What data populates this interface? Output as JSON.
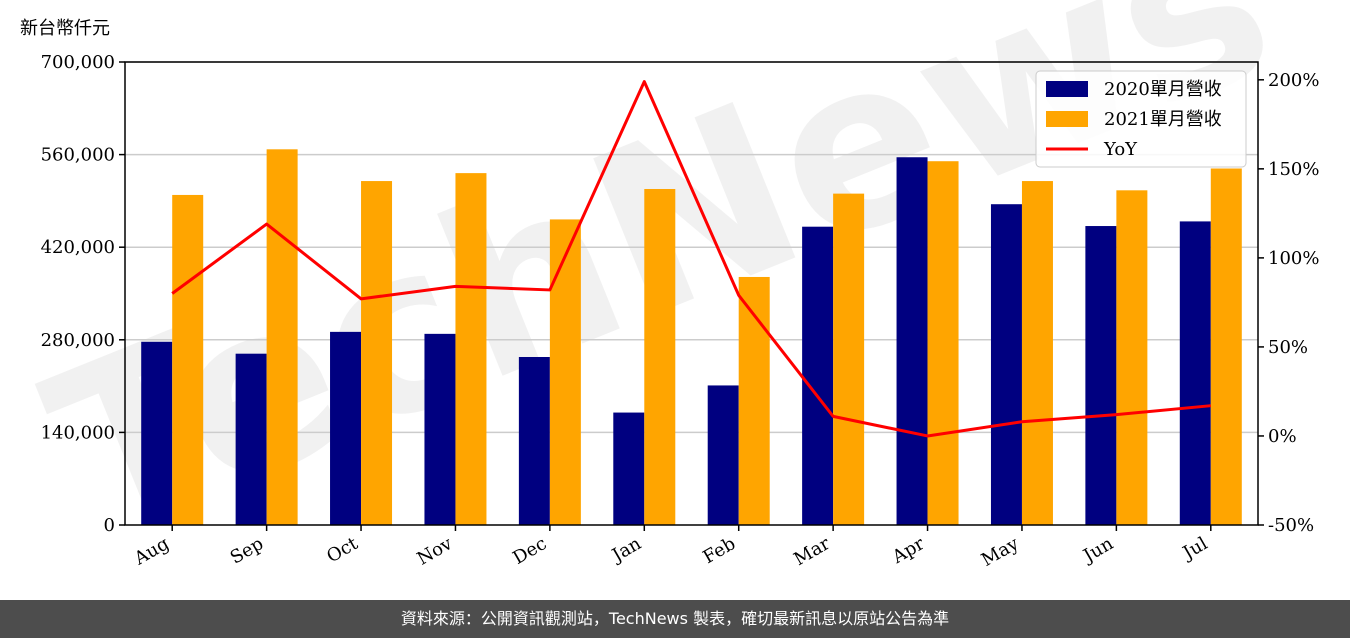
{
  "unit_label": "新台幣仟元",
  "footer_text": "資料來源：公開資訊觀測站，TechNews 製表，確切最新訊息以原站公告為準",
  "watermark_text": "TechNews",
  "colors": {
    "series_2020": "#000080",
    "series_2021": "#FFA500",
    "yoy_line": "#FF0000",
    "grid": "#cccccc",
    "footer_bg": "#4d4d4d"
  },
  "chart_data": {
    "type": "bar",
    "categories": [
      "Aug",
      "Sep",
      "Oct",
      "Nov",
      "Dec",
      "Jan",
      "Feb",
      "Mar",
      "Apr",
      "May",
      "Jun",
      "Jul"
    ],
    "series": [
      {
        "name": "2020單月營收",
        "values": [
          277000,
          259000,
          292000,
          289000,
          254000,
          170000,
          211000,
          451000,
          556000,
          485000,
          452000,
          459000
        ]
      },
      {
        "name": "2021單月營收",
        "values": [
          499000,
          568000,
          520000,
          532000,
          462000,
          508000,
          375000,
          501000,
          550000,
          520000,
          506000,
          539000
        ]
      }
    ],
    "line_series": {
      "name": "YoY",
      "axis": "right",
      "values": [
        80,
        119,
        77,
        84,
        82,
        199,
        79,
        11,
        0,
        8,
        12,
        17
      ]
    },
    "ylim": [
      0,
      700000
    ],
    "yticks": [
      "0",
      "140,000",
      "280,000",
      "420,000",
      "560,000",
      "700,000"
    ],
    "ytick_values": [
      0,
      140000,
      280000,
      420000,
      560000,
      700000
    ],
    "y2lim": [
      -50,
      210
    ],
    "y2ticks": [
      "-50%",
      "0%",
      "50%",
      "100%",
      "150%",
      "200%"
    ],
    "y2tick_values": [
      -50,
      0,
      50,
      100,
      150,
      200
    ],
    "grid": true,
    "legend": "top-right",
    "title": "",
    "xlabel": "",
    "ylabel": "新台幣仟元"
  }
}
